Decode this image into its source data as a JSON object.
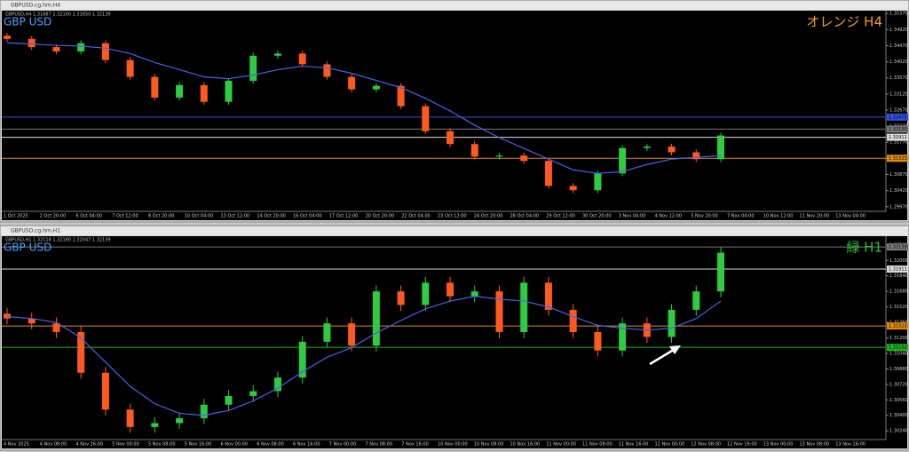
{
  "windows": [
    {
      "title": "GBPUSD,cg,hm,H4",
      "info": "GBPUSD,H4 1.31687 1.32160 1.31650 1.32139",
      "symbol": "GBP USD",
      "label": "オレンジ H4",
      "label_color": "#f0a020",
      "chart_data": {
        "type": "candlestick",
        "up_color": "#2ecc40",
        "down_color": "#ff5a1e",
        "open": [
          1.3475,
          1.3466,
          1.3443,
          1.3431,
          1.3454,
          1.3407,
          1.336,
          1.3302,
          1.3337,
          1.329,
          1.3349,
          1.3419,
          1.3425,
          1.3395,
          1.336,
          1.3325,
          1.3335,
          1.3278,
          1.3208,
          1.3172,
          1.3137,
          1.314,
          1.3125,
          1.3055,
          1.3043,
          1.309,
          1.3161,
          1.3165,
          1.3149,
          1.313
        ],
        "high": [
          1.3483,
          1.3474,
          1.3451,
          1.3462,
          1.3462,
          1.3415,
          1.3368,
          1.3345,
          1.3345,
          1.3357,
          1.3427,
          1.3433,
          1.3433,
          1.3403,
          1.3368,
          1.3343,
          1.3343,
          1.3286,
          1.3216,
          1.318,
          1.3148,
          1.3148,
          1.3133,
          1.3063,
          1.3098,
          1.3169,
          1.3173,
          1.3173,
          1.3157,
          1.3204
        ],
        "low": [
          1.3458,
          1.3435,
          1.3423,
          1.3423,
          1.3399,
          1.3352,
          1.3294,
          1.3294,
          1.3282,
          1.3282,
          1.3341,
          1.3411,
          1.3387,
          1.3352,
          1.3317,
          1.3317,
          1.327,
          1.32,
          1.3164,
          1.3129,
          1.3129,
          1.3117,
          1.3047,
          1.3035,
          1.3035,
          1.3082,
          1.3153,
          1.3141,
          1.3122,
          1.3122
        ],
        "close": [
          1.3466,
          1.3443,
          1.3431,
          1.3454,
          1.3407,
          1.336,
          1.3302,
          1.3337,
          1.329,
          1.3349,
          1.3419,
          1.3425,
          1.3395,
          1.336,
          1.3325,
          1.3335,
          1.3278,
          1.3208,
          1.3172,
          1.3137,
          1.314,
          1.3125,
          1.3055,
          1.3043,
          1.309,
          1.3161,
          1.3165,
          1.3149,
          1.313,
          1.3196
        ],
        "ma": {
          "color": "#4a5ff0",
          "values": [
            1.3455,
            1.3452,
            1.3448,
            1.3446,
            1.344,
            1.3425,
            1.34,
            1.338,
            1.336,
            1.3355,
            1.3365,
            1.338,
            1.339,
            1.3385,
            1.337,
            1.335,
            1.333,
            1.33,
            1.3265,
            1.3225,
            1.319,
            1.316,
            1.313,
            1.31,
            1.309,
            1.3095,
            1.3115,
            1.313,
            1.3135,
            1.314
          ]
        },
        "ylim": [
          1.2984,
          1.3545
        ],
        "yticks": [
          {
            "value": 1.2997,
            "label": "1.29970"
          },
          {
            "value": 1.3042,
            "label": "1.30420"
          },
          {
            "value": 1.3087,
            "label": "1.30870"
          },
          {
            "value": 1.3132,
            "label": "1.31320"
          },
          {
            "value": 1.3177,
            "label": "1.31770"
          },
          {
            "value": 1.3222,
            "label": "1.32220"
          },
          {
            "value": 1.3267,
            "label": "1.32670"
          },
          {
            "value": 1.3312,
            "label": "1.33120"
          },
          {
            "value": 1.3357,
            "label": "1.33570"
          },
          {
            "value": 1.3402,
            "label": "1.34020"
          },
          {
            "value": 1.3447,
            "label": "1.34470"
          },
          {
            "value": 1.3492,
            "label": "1.34920"
          },
          {
            "value": 1.3537,
            "label": "1.35370"
          }
        ],
        "levels": [
          {
            "value": 1.32475,
            "color": "#3050e0"
          },
          {
            "value": 1.32139,
            "color": "#777777"
          },
          {
            "value": 1.31911,
            "color": "#dddddd"
          },
          {
            "value": 1.31323,
            "color": "#e08a10"
          }
        ],
        "time_labels": [
          "1 Oct 2025",
          "2 Oct 20:00",
          "6 Oct 04:00",
          "7 Oct 12:00",
          "8 Oct 20:00",
          "10 Oct 04:00",
          "13 Oct 12:00",
          "14 Oct 20:00",
          "16 Oct 04:00",
          "17 Oct 12:00",
          "20 Oct 20:00",
          "22 Oct 04:00",
          "23 Oct 12:00",
          "24 Oct 20:00",
          "28 Oct 04:00",
          "29 Oct 12:00",
          "30 Oct 20:00",
          "3 Nov 04:00",
          "4 Nov 12:00",
          "5 Nov 20:00",
          "7 Nov 04:00",
          "10 Nov 12:00",
          "11 Nov 20:00",
          "13 Nov 04:00"
        ]
      }
    },
    {
      "title": "GBPUSD,cg,hm,H1",
      "info": "GBPUSD,H1 1.32118 1.32160 1.32047 1.32139",
      "symbol": "GBP USD",
      "label": "緑 H1",
      "label_color": "#30c030",
      "chart_data": {
        "type": "candlestick",
        "up_color": "#2ecc40",
        "down_color": "#ff5a1e",
        "open": [
          1.3145,
          1.314,
          1.3135,
          1.3126,
          1.3084,
          1.3046,
          1.3028,
          1.3032,
          1.3037,
          1.3051,
          1.306,
          1.3065,
          1.3079,
          1.3116,
          1.3135,
          1.3112,
          1.3168,
          1.3154,
          1.3177,
          1.3163,
          1.3168,
          1.3126,
          1.3177,
          1.3149,
          1.3126,
          1.3107,
          1.3135,
          1.3121,
          1.3149,
          1.3168
        ],
        "high": [
          1.3151,
          1.3146,
          1.3141,
          1.3132,
          1.309,
          1.3052,
          1.3038,
          1.3043,
          1.3057,
          1.3066,
          1.3071,
          1.3085,
          1.3122,
          1.3141,
          1.3141,
          1.3174,
          1.3174,
          1.3183,
          1.3183,
          1.3174,
          1.3174,
          1.3183,
          1.3183,
          1.3155,
          1.3132,
          1.3141,
          1.3141,
          1.3155,
          1.3174,
          1.3214
        ],
        "low": [
          1.3134,
          1.3129,
          1.312,
          1.3078,
          1.304,
          1.3022,
          1.3022,
          1.3026,
          1.3031,
          1.3045,
          1.3054,
          1.3059,
          1.3073,
          1.311,
          1.3106,
          1.3106,
          1.3148,
          1.3148,
          1.3157,
          1.3157,
          1.312,
          1.312,
          1.3143,
          1.312,
          1.3101,
          1.3101,
          1.3115,
          1.3115,
          1.3143,
          1.3162
        ],
        "close": [
          1.314,
          1.3135,
          1.3126,
          1.3084,
          1.3046,
          1.3028,
          1.3032,
          1.3037,
          1.3051,
          1.306,
          1.3065,
          1.3079,
          1.3116,
          1.3135,
          1.3112,
          1.3168,
          1.3154,
          1.3177,
          1.3163,
          1.3168,
          1.3126,
          1.3177,
          1.3149,
          1.3126,
          1.3107,
          1.3135,
          1.3121,
          1.3149,
          1.3168,
          1.3208
        ],
        "ma": {
          "color": "#4a5ff0",
          "values": [
            1.3142,
            1.314,
            1.3136,
            1.312,
            1.3095,
            1.307,
            1.3052,
            1.3042,
            1.304,
            1.3045,
            1.3055,
            1.3068,
            1.3085,
            1.31,
            1.311,
            1.3125,
            1.3138,
            1.315,
            1.3158,
            1.3163,
            1.316,
            1.3158,
            1.3152,
            1.3142,
            1.3133,
            1.313,
            1.3128,
            1.313,
            1.314,
            1.3158
          ]
        },
        "ylim": [
          1.3015,
          1.3225
        ],
        "yticks": [
          {
            "value": 1.3024,
            "label": "1.30240"
          },
          {
            "value": 1.304,
            "label": "1.30400"
          },
          {
            "value": 1.3056,
            "label": "1.30560"
          },
          {
            "value": 1.3072,
            "label": "1.30720"
          },
          {
            "value": 1.3088,
            "label": "1.30880"
          },
          {
            "value": 1.3104,
            "label": "1.31040"
          },
          {
            "value": 1.312,
            "label": "1.31200"
          },
          {
            "value": 1.3136,
            "label": "1.31360"
          },
          {
            "value": 1.3152,
            "label": "1.31520"
          },
          {
            "value": 1.3168,
            "label": "1.31680"
          },
          {
            "value": 1.3184,
            "label": "1.31840"
          },
          {
            "value": 1.32,
            "label": "1.32000"
          },
          {
            "value": 1.3216,
            "label": "1.32160"
          }
        ],
        "levels": [
          {
            "value": 1.32139,
            "color": "#777777"
          },
          {
            "value": 1.31911,
            "color": "#dddddd"
          },
          {
            "value": 1.31323,
            "color": "#e08a10"
          },
          {
            "value": 1.31102,
            "color": "#20b020"
          }
        ],
        "time_labels": [
          "4 Nov 2025",
          "4 Nov 08:00",
          "4 Nov 16:00",
          "5 Nov 00:00",
          "5 Nov 08:00",
          "5 Nov 16:00",
          "6 Nov 00:00",
          "6 Nov 08:00",
          "6 Nov 16:00",
          "7 Nov 00:00",
          "7 Nov 08:00",
          "7 Nov 16:00",
          "10 Nov 00:00",
          "10 Nov 08:00",
          "10 Nov 16:00",
          "11 Nov 00:00",
          "11 Nov 08:00",
          "11 Nov 16:00",
          "12 Nov 00:00",
          "12 Nov 08:00",
          "12 Nov 16:00",
          "13 Nov 00:00",
          "13 Nov 08:00",
          "13 Nov 16:00"
        ]
      }
    }
  ]
}
